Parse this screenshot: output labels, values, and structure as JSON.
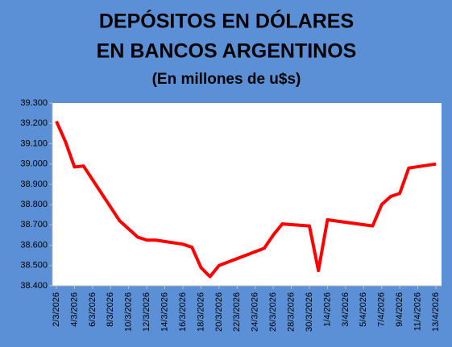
{
  "chart_data": {
    "type": "line",
    "title_lines": [
      "DEPÓSITOS EN DÓLARES",
      "EN BANCOS ARGENTINOS"
    ],
    "subtitle": "(En millones de u$s)",
    "x": [
      "2/3/2026",
      "3/3/2026",
      "4/3/2026",
      "5/3/2026",
      "9/3/2026",
      "11/3/2026",
      "12/3/2026",
      "13/3/2026",
      "16/3/2026",
      "17/3/2026",
      "18/3/2026",
      "19/3/2026",
      "20/3/2026",
      "25/3/2026",
      "26/3/2026",
      "27/3/2026",
      "30/3/2026",
      "31/3/2026",
      "1/4/2026",
      "6/4/2026",
      "7/4/2026",
      "8/4/2026",
      "9/4/2026",
      "10/4/2026",
      "13/4/2026"
    ],
    "series": [
      {
        "color": "#ff0000",
        "values": [
          39210,
          39110,
          38985,
          38990,
          38720,
          38640,
          38625,
          38625,
          38605,
          38590,
          38490,
          38445,
          38500,
          38585,
          38650,
          38705,
          38695,
          38475,
          38725,
          38695,
          38800,
          38840,
          38855,
          38980,
          39000
        ]
      }
    ],
    "xlim": [
      "2/3/2026",
      "13/4/2026"
    ],
    "xticks": [
      "2/3/2026",
      "4/3/2026",
      "6/3/2026",
      "8/3/2026",
      "10/3/2026",
      "12/3/2026",
      "14/3/2026",
      "16/3/2026",
      "18/3/2026",
      "20/3/2026",
      "22/3/2026",
      "24/3/2026",
      "26/3/2026",
      "28/3/2026",
      "30/3/2026",
      "1/4/2026",
      "3/4/2026",
      "5/4/2026",
      "7/4/2026",
      "9/4/2026",
      "11/4/2026",
      "13/4/2026"
    ],
    "ylim": [
      38400,
      39300
    ],
    "yticks": [
      {
        "value": 38400,
        "label": "38.400"
      },
      {
        "value": 38500,
        "label": "38.500"
      },
      {
        "value": 38600,
        "label": "38.600"
      },
      {
        "value": 38700,
        "label": "38.700"
      },
      {
        "value": 38800,
        "label": "38.800"
      },
      {
        "value": 38900,
        "label": "38.900"
      },
      {
        "value": 39000,
        "label": "39.000"
      },
      {
        "value": 39100,
        "label": "39.100"
      },
      {
        "value": 39200,
        "label": "39.200"
      },
      {
        "value": 39300,
        "label": "39.300"
      }
    ],
    "grid": false
  }
}
